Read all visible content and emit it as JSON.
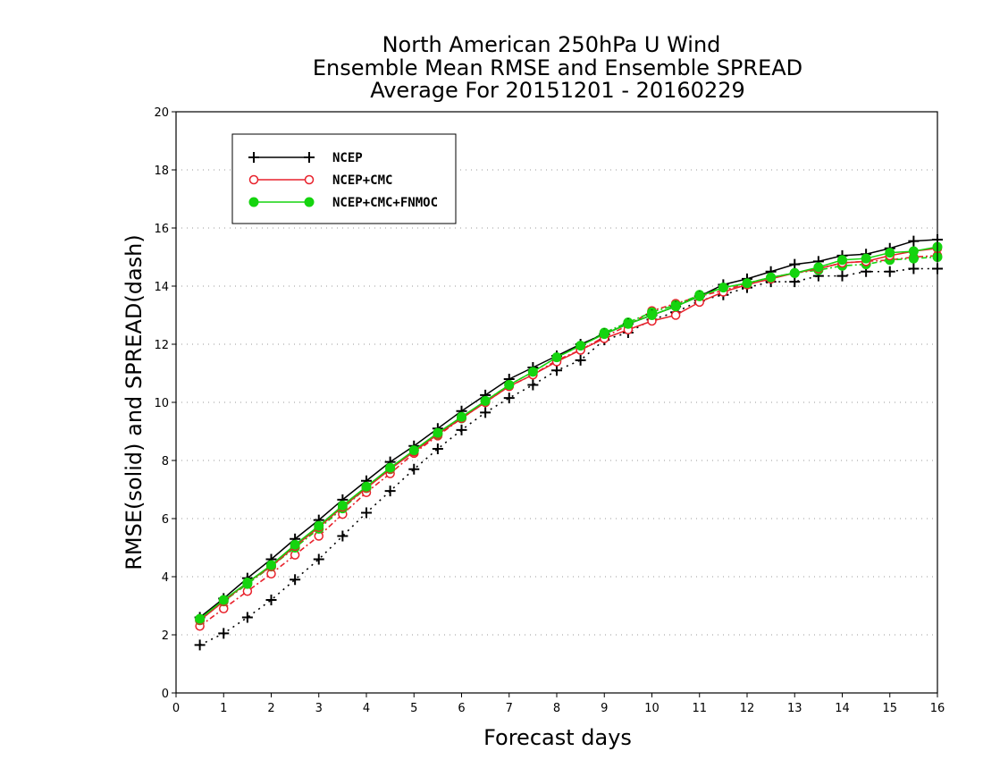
{
  "chart_data": {
    "type": "line",
    "title_lines": [
      "North American 250hPa U Wind",
      "Ensemble Mean RMSE and Ensemble SPREAD",
      "Average For 20151201 - 20160229"
    ],
    "xlabel": "Forecast days",
    "ylabel": "RMSE(solid) and SPREAD(dash)",
    "xlim": [
      0,
      16
    ],
    "ylim": [
      0,
      20
    ],
    "xticks": [
      0,
      1,
      2,
      3,
      4,
      5,
      6,
      7,
      8,
      9,
      10,
      11,
      12,
      13,
      14,
      15,
      16
    ],
    "yticks": [
      0,
      2,
      4,
      6,
      8,
      10,
      12,
      14,
      16,
      18,
      20
    ],
    "grid": "dotted horizontal",
    "legend_position": "top-left",
    "x": [
      0.5,
      1,
      1.5,
      2,
      2.5,
      3,
      3.5,
      4,
      4.5,
      5,
      5.5,
      6,
      6.5,
      7,
      7.5,
      8,
      8.5,
      9,
      9.5,
      10,
      10.5,
      11,
      11.5,
      12,
      12.5,
      13,
      13.5,
      14,
      14.5,
      15,
      15.5,
      16
    ],
    "series": [
      {
        "name": "NCEP",
        "kind": "rmse",
        "color": "#000000",
        "marker": "plus",
        "values": [
          2.6,
          3.25,
          3.95,
          4.6,
          5.3,
          5.95,
          6.65,
          7.3,
          7.95,
          8.5,
          9.1,
          9.7,
          10.25,
          10.8,
          11.2,
          11.6,
          12.0,
          12.35,
          12.7,
          13.0,
          13.3,
          13.65,
          14.05,
          14.25,
          14.5,
          14.75,
          14.85,
          15.05,
          15.1,
          15.3,
          15.55,
          15.6
        ]
      },
      {
        "name": "NCEP+CMC",
        "kind": "rmse",
        "color": "#e8212b",
        "marker": "open-circle",
        "values": [
          2.5,
          3.15,
          3.8,
          4.35,
          5.05,
          5.7,
          6.4,
          7.05,
          7.7,
          8.3,
          8.9,
          9.45,
          10.0,
          10.55,
          10.95,
          11.4,
          11.8,
          12.2,
          12.5,
          12.8,
          13.0,
          13.45,
          13.8,
          14.05,
          14.25,
          14.45,
          14.6,
          14.8,
          14.85,
          15.05,
          15.2,
          15.3
        ]
      },
      {
        "name": "NCEP+CMC+FNMOC",
        "kind": "rmse",
        "color": "#15d40f",
        "marker": "filled-circle",
        "values": [
          2.55,
          3.2,
          3.8,
          4.4,
          5.1,
          5.75,
          6.45,
          7.1,
          7.75,
          8.35,
          8.95,
          9.5,
          10.05,
          10.6,
          11.05,
          11.55,
          11.95,
          12.35,
          12.7,
          13.0,
          13.3,
          13.65,
          13.95,
          14.1,
          14.3,
          14.45,
          14.65,
          14.9,
          14.95,
          15.15,
          15.2,
          15.35
        ]
      },
      {
        "name": "NCEP",
        "kind": "spread",
        "color": "#000000",
        "marker": "plus",
        "values": [
          1.65,
          2.05,
          2.6,
          3.2,
          3.9,
          4.6,
          5.4,
          6.2,
          6.95,
          7.7,
          8.4,
          9.05,
          9.65,
          10.15,
          10.6,
          11.1,
          11.45,
          12.15,
          12.4,
          12.85,
          13.1,
          13.5,
          13.7,
          13.95,
          14.15,
          14.15,
          14.35,
          14.35,
          14.5,
          14.5,
          14.6,
          14.6
        ]
      },
      {
        "name": "NCEP+CMC",
        "kind": "spread",
        "color": "#e8212b",
        "marker": "open-circle",
        "values": [
          2.3,
          2.9,
          3.5,
          4.1,
          4.75,
          5.4,
          6.15,
          6.9,
          7.55,
          8.25,
          8.85,
          9.45,
          10.0,
          10.55,
          10.95,
          11.45,
          11.8,
          12.25,
          12.65,
          13.15,
          13.4,
          13.65,
          13.85,
          14.1,
          14.3,
          14.45,
          14.6,
          14.8,
          14.85,
          14.9,
          15.0,
          15.05
        ]
      },
      {
        "name": "NCEP+CMC+FNMOC",
        "kind": "spread",
        "color": "#15d40f",
        "marker": "filled-circle",
        "values": [
          2.5,
          3.15,
          3.75,
          4.35,
          5.0,
          5.65,
          6.35,
          7.05,
          7.7,
          8.35,
          8.9,
          9.45,
          10.05,
          10.6,
          11.05,
          11.55,
          11.95,
          12.4,
          12.75,
          13.1,
          13.35,
          13.7,
          13.95,
          14.1,
          14.3,
          14.45,
          14.55,
          14.7,
          14.75,
          14.9,
          14.95,
          15.0
        ]
      }
    ],
    "legend": [
      {
        "label": "NCEP",
        "color": "#000000",
        "marker": "plus"
      },
      {
        "label": "NCEP+CMC",
        "color": "#e8212b",
        "marker": "open-circle"
      },
      {
        "label": "NCEP+CMC+FNMOC",
        "color": "#15d40f",
        "marker": "filled-circle"
      }
    ]
  }
}
